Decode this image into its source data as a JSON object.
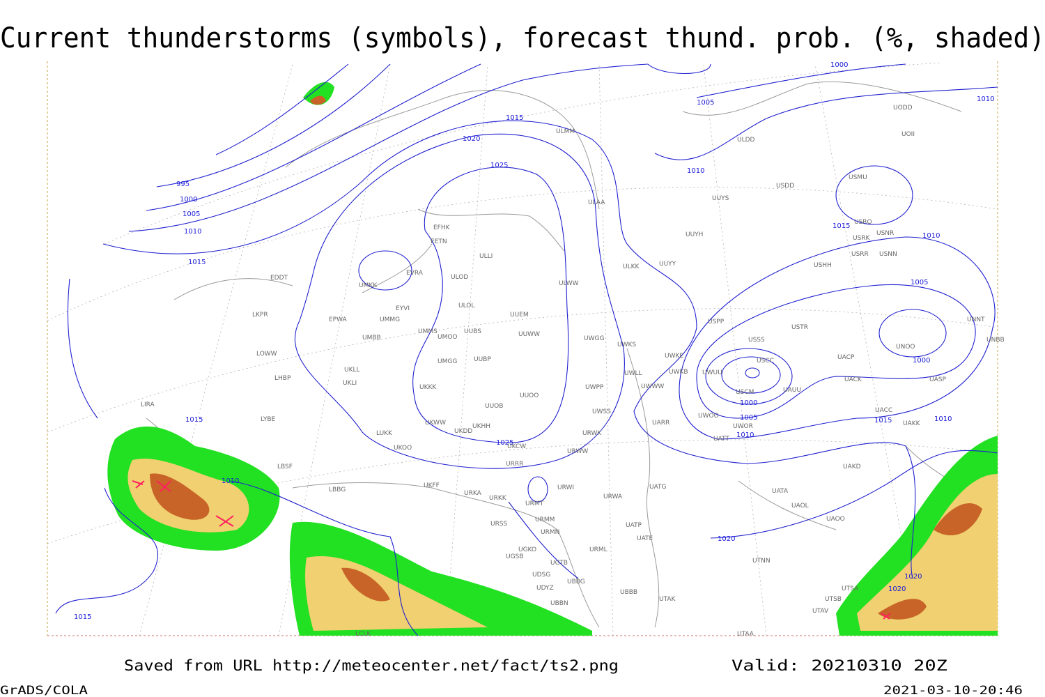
{
  "header": {
    "title": "Current thunderstorms (symbols), forecast thund. prob. (%, shaded)"
  },
  "isobar_labels": [
    995,
    1000,
    1005,
    1010,
    1015,
    1020,
    1015,
    1025,
    1005,
    1010,
    1000,
    1010,
    1015,
    1010,
    1005,
    1000,
    1015,
    1025,
    1010,
    1000,
    1005,
    1010,
    1015,
    1010,
    1020,
    1020,
    1020,
    1015
  ],
  "stations": [
    "EFHK",
    "EETN",
    "EVRA",
    "UMKK",
    "ULOD",
    "ULLI",
    "ULWW",
    "ULOL",
    "UUEM",
    "EYVI",
    "UMMG",
    "EPWA",
    "LKPR",
    "EDDT",
    "UMMS",
    "UMOO",
    "UUBS",
    "UUWW",
    "UMBB",
    "UMGG",
    "UUBP",
    "LOWW",
    "UKLL",
    "UKLI",
    "LHBP",
    "UKKK",
    "UUOO",
    "UUOB",
    "LIRA",
    "LYBE",
    "UKHH",
    "UKDD",
    "UKWW",
    "LUKK",
    "UKOO",
    "UKCW",
    "LBSF",
    "UKFF",
    "URKA",
    "URRR",
    "LBBG",
    "URKK",
    "URMT",
    "URWI",
    "URWA",
    "URSS",
    "URMM",
    "URMN",
    "UGSB",
    "UGKO",
    "URML",
    "UGTB",
    "UDSG",
    "UBBG",
    "UBBB",
    "UDYZ",
    "UBBN",
    "LCLK",
    "UUYY",
    "ULKK",
    "UUYH",
    "UUYS",
    "UWGG",
    "UWKS",
    "UWKE",
    "UWKB",
    "UWLL",
    "UWWW",
    "UWPP",
    "UWSS",
    "URWW",
    "URWK",
    "UARR",
    "UATG",
    "UATP",
    "UATE",
    "UTAK",
    "UTAA",
    "UTNN",
    "UATT",
    "UWOO",
    "UWOR",
    "USCM",
    "UAUU",
    "USCC",
    "UWUU",
    "USSS",
    "USPP",
    "USTR",
    "USHH",
    "USRR",
    "USNN",
    "USRK",
    "USNR",
    "USRO",
    "USMU",
    "USDD",
    "ULDD",
    "ULMM",
    "ULAA",
    "UODD",
    "UOII",
    "UACP",
    "UACK",
    "UASP",
    "UNNT",
    "UNBB",
    "UNOO",
    "UACC",
    "UAKK",
    "UAKD",
    "UATA",
    "UAOL",
    "UAOO",
    "UTSB",
    "UTAV",
    "UTSA"
  ],
  "footer": {
    "source": "Saved from URL http://meteocenter.net/fact/ts2.png",
    "valid": "Valid: 20210310 20Z",
    "software": "GrADS/COLA",
    "timestamp": "2021-03-10-20:46"
  }
}
